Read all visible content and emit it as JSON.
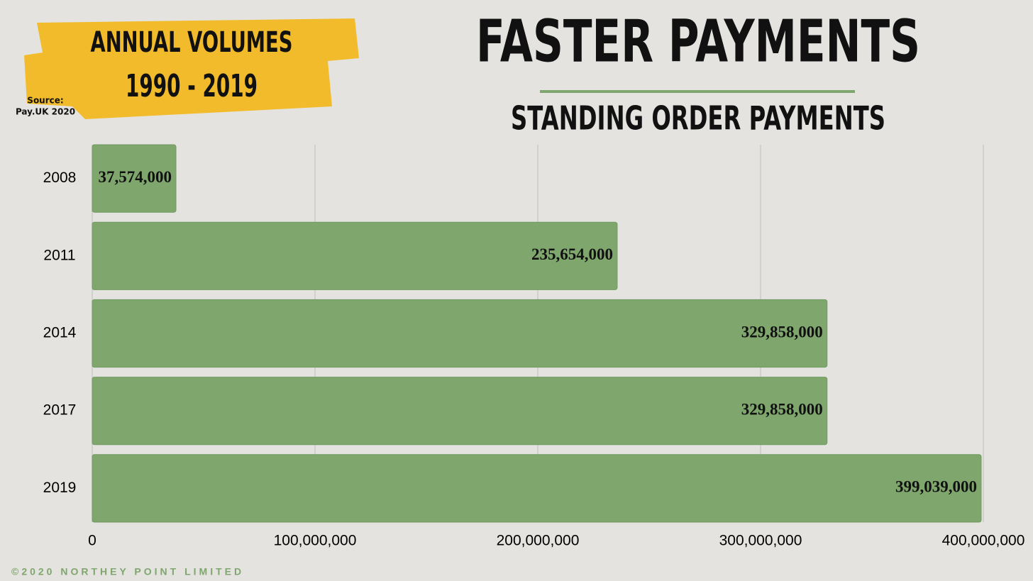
{
  "chart_data": {
    "type": "hbar",
    "title": "FASTER PAYMENTS",
    "subtitle": "STANDING ORDER PAYMENTS",
    "badge": [
      "ANNUAL VOLUMES",
      "1990 - 2019"
    ],
    "source": [
      "Source:",
      "Pay.UK 2020"
    ],
    "footer": "©2020 NORTHEY POINT LIMITED",
    "categories": [
      "2008",
      "2011",
      "2014",
      "2017",
      "2019"
    ],
    "values": [
      37574000,
      235654000,
      329858000,
      329858000,
      399039000
    ],
    "value_labels": [
      "37,574,000",
      "235,654,000",
      "329,858,000",
      "329,858,000",
      "399,039,000"
    ],
    "color": "#7fa76d",
    "xlim": [
      0,
      400000000
    ],
    "xticks": [
      0,
      {
        "value": 100000000,
        "label": "100,000,000"
      },
      {
        "value": 200000000,
        "label": "200,000,000"
      },
      {
        "value": 300000000,
        "label": "300,000,000"
      },
      {
        "value": 400000000,
        "label": "400,000,000"
      }
    ],
    "grid": true
  }
}
